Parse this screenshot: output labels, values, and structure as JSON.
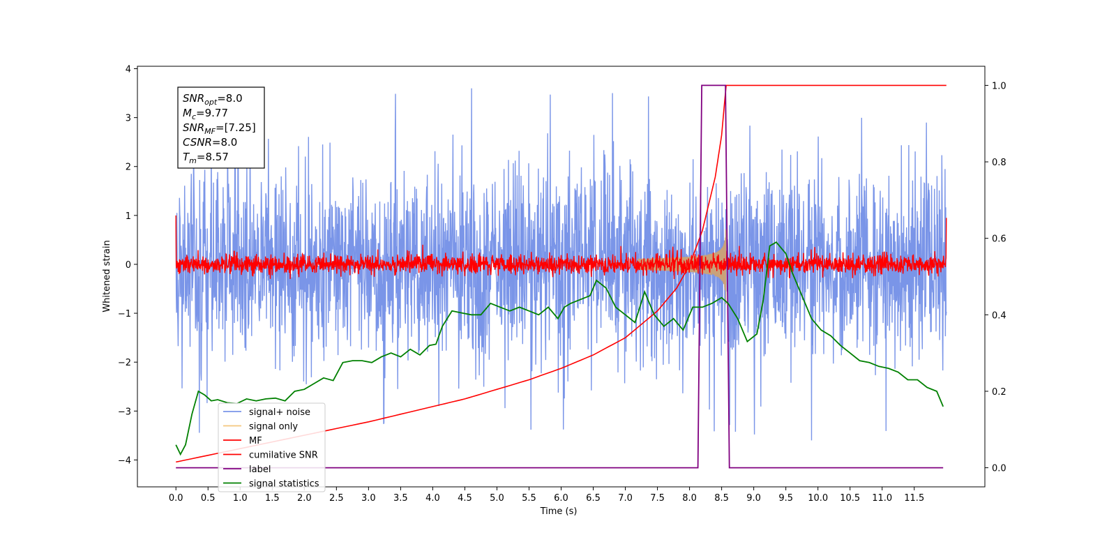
{
  "chart_data": {
    "type": "line",
    "xlabel": "Time (s)",
    "ylabel": "Whitened strain",
    "xlim": [
      -0.6,
      12.6
    ],
    "ylim_left": [
      -4.55,
      4.05
    ],
    "ylim_right": [
      -0.05,
      1.05
    ],
    "x_ticks": [
      "0.0",
      "0.5",
      "1.0",
      "1.5",
      "2.0",
      "2.5",
      "3.0",
      "3.5",
      "4.0",
      "4.5",
      "5.0",
      "5.5",
      "6.0",
      "6.5",
      "7.0",
      "7.5",
      "8.0",
      "8.5",
      "9.0",
      "9.5",
      "10.0",
      "10.5",
      "11.0",
      "11.5"
    ],
    "y_ticks_left": [
      "4",
      "3",
      "2",
      "1",
      "0",
      "−1",
      "−2",
      "−3",
      "−4"
    ],
    "y_ticks_right": [
      "1.0",
      "0.8",
      "0.6",
      "0.4",
      "0.2",
      "0.0"
    ],
    "annotation": {
      "lines": [
        {
          "sym": "SNR",
          "sub": "opt",
          "val": "=8.0"
        },
        {
          "sym": "M",
          "sub": "c",
          "val": "=9.77"
        },
        {
          "sym": "SNR",
          "sub": "MF",
          "val": "=[7.25]"
        },
        {
          "sym": "CSNR",
          "sub": "",
          "val": "=8.0"
        },
        {
          "sym": "T",
          "sub": "m",
          "val": "=8.57"
        }
      ]
    },
    "legend": {
      "placement": "lower-left",
      "entries": [
        "signal+ noise",
        "signal only",
        "MF",
        "cumilative SNR",
        "label",
        "signal statistics"
      ]
    },
    "series": [
      {
        "name": "signal+ noise",
        "axis": "left",
        "color": "#7a95e8",
        "envelope": {
          "center": 0.0,
          "range": [
            -2.2,
            2.2
          ],
          "spikes_max": 3.6,
          "spikes_min": -3.6
        }
      },
      {
        "name": "signal only",
        "axis": "left",
        "color": "#c9a27a",
        "chirp": {
          "merge_time": 8.57,
          "max_amplitude": 0.9
        }
      },
      {
        "name": "MF",
        "axis": "left",
        "color": "#ff0000",
        "envelope": {
          "center": 0.0,
          "range": [
            -0.25,
            0.4
          ]
        }
      },
      {
        "name": "cumilative SNR",
        "axis": "right",
        "color": "#ff0000",
        "x": [
          0.0,
          1.0,
          2.0,
          3.0,
          4.0,
          4.5,
          5.0,
          5.5,
          6.0,
          6.5,
          7.0,
          7.5,
          7.8,
          8.0,
          8.2,
          8.4,
          8.5,
          8.57,
          12.0
        ],
        "y": [
          0.015,
          0.05,
          0.085,
          0.12,
          0.16,
          0.18,
          0.205,
          0.23,
          0.26,
          0.295,
          0.34,
          0.41,
          0.47,
          0.53,
          0.62,
          0.76,
          0.87,
          1.0,
          1.0
        ]
      },
      {
        "name": "label",
        "axis": "right",
        "color": "#800080",
        "x": [
          0.0,
          8.13,
          8.19,
          8.56,
          8.62,
          11.95
        ],
        "y": [
          0.0,
          0.0,
          1.0,
          1.0,
          0.0,
          0.0
        ]
      },
      {
        "name": "signal statistics",
        "axis": "right",
        "color": "#008000",
        "x": [
          0.0,
          0.07,
          0.15,
          0.25,
          0.35,
          0.45,
          0.55,
          0.65,
          0.8,
          0.95,
          1.1,
          1.25,
          1.4,
          1.55,
          1.7,
          1.85,
          2.0,
          2.15,
          2.3,
          2.45,
          2.6,
          2.75,
          2.9,
          3.05,
          3.2,
          3.35,
          3.5,
          3.65,
          3.8,
          3.95,
          4.05,
          4.15,
          4.3,
          4.45,
          4.6,
          4.75,
          4.9,
          5.05,
          5.2,
          5.35,
          5.5,
          5.65,
          5.8,
          5.95,
          6.05,
          6.15,
          6.3,
          6.45,
          6.55,
          6.7,
          6.85,
          7.0,
          7.15,
          7.3,
          7.45,
          7.6,
          7.75,
          7.9,
          8.05,
          8.2,
          8.35,
          8.5,
          8.6,
          8.75,
          8.9,
          9.05,
          9.15,
          9.25,
          9.35,
          9.5,
          9.6,
          9.75,
          9.9,
          10.05,
          10.2,
          10.35,
          10.5,
          10.65,
          10.8,
          10.95,
          11.1,
          11.25,
          11.4,
          11.55,
          11.7,
          11.85,
          11.95
        ],
        "y": [
          0.06,
          0.035,
          0.06,
          0.14,
          0.2,
          0.19,
          0.175,
          0.178,
          0.17,
          0.168,
          0.18,
          0.175,
          0.18,
          0.182,
          0.175,
          0.2,
          0.205,
          0.22,
          0.235,
          0.228,
          0.275,
          0.28,
          0.28,
          0.275,
          0.29,
          0.3,
          0.29,
          0.31,
          0.295,
          0.32,
          0.323,
          0.37,
          0.41,
          0.405,
          0.4,
          0.4,
          0.43,
          0.42,
          0.41,
          0.42,
          0.41,
          0.4,
          0.42,
          0.39,
          0.42,
          0.43,
          0.44,
          0.45,
          0.49,
          0.47,
          0.42,
          0.4,
          0.38,
          0.46,
          0.4,
          0.37,
          0.39,
          0.36,
          0.42,
          0.42,
          0.43,
          0.445,
          0.43,
          0.39,
          0.33,
          0.35,
          0.44,
          0.58,
          0.59,
          0.56,
          0.51,
          0.45,
          0.39,
          0.36,
          0.345,
          0.32,
          0.3,
          0.28,
          0.275,
          0.265,
          0.26,
          0.25,
          0.23,
          0.23,
          0.21,
          0.2,
          0.16
        ]
      }
    ]
  }
}
